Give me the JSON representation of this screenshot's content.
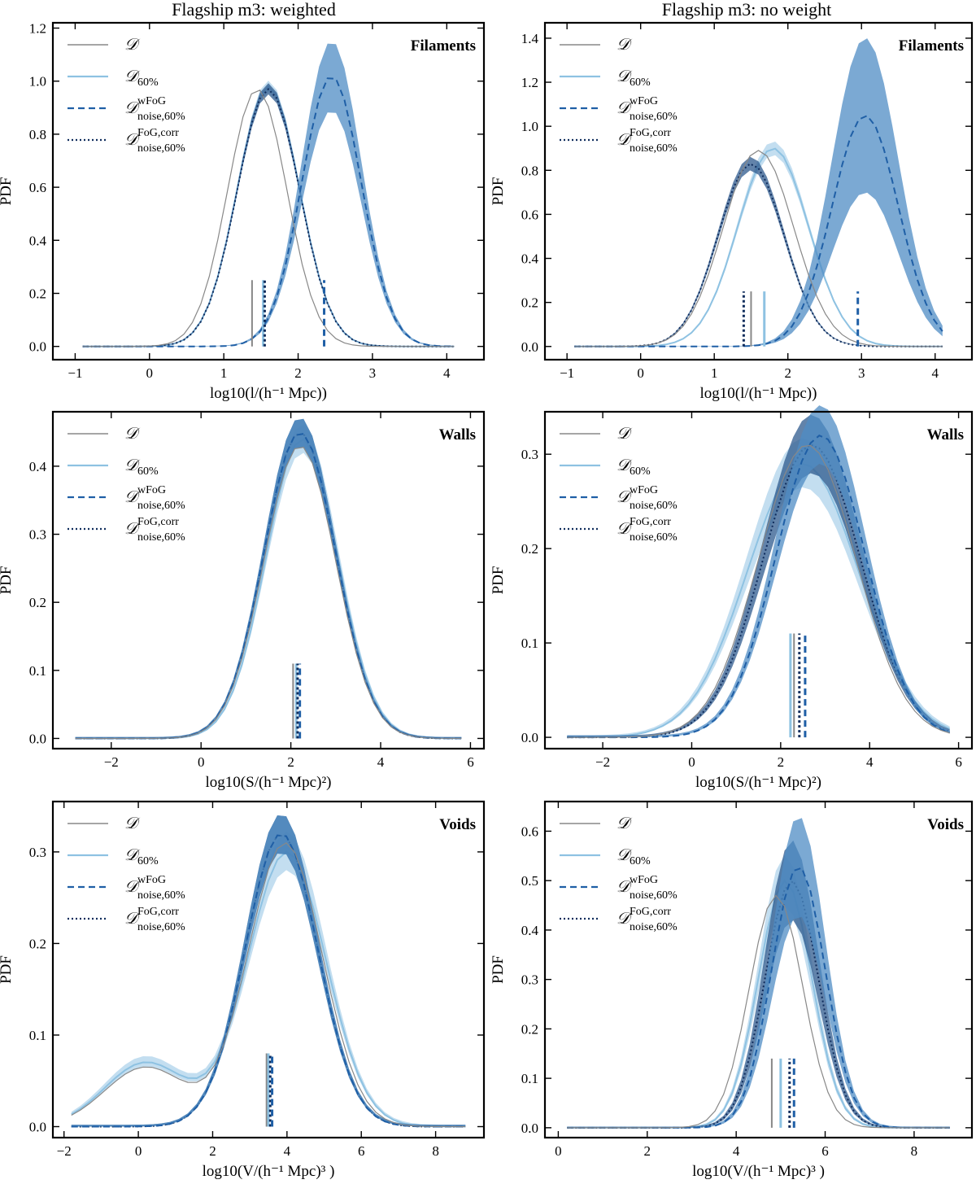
{
  "figure": {
    "col_titles": [
      "Flagship m3: weighted",
      "Flagship m3: no weight"
    ],
    "ylabel": "PDF"
  },
  "legend": [
    {
      "key": "D",
      "style": "thin-grey",
      "main": "𝒟",
      "sup": "",
      "sub": ""
    },
    {
      "key": "D60",
      "style": "light-blue",
      "main": "𝒟",
      "sup": "",
      "sub": "60%"
    },
    {
      "key": "Dw",
      "style": "dashed",
      "main": "𝒟",
      "sup": "wFoG",
      "sub": "noise,60%"
    },
    {
      "key": "Dc",
      "style": "dotted",
      "main": "𝒟",
      "sup": "FoG,corr",
      "sub": "noise,60%"
    }
  ],
  "colors": {
    "D": "#888888",
    "D60": "#8ec2e2",
    "Dw": "#1f5fa6",
    "Dc": "#0f2c5c",
    "band_D60": "#a9d0ea",
    "band_Dw": "#4f8cc4",
    "band_Dc": "#2e5a8e"
  },
  "chart_data": [
    {
      "type": "line",
      "row": 0,
      "col": 0,
      "label": "Filaments",
      "xlabel": "log10(l/(h⁻¹ Mpc))",
      "ylabel": "PDF",
      "xlim": [
        -1.3,
        4.5
      ],
      "ylim": [
        -0.05,
        1.22
      ],
      "xticks": [
        -1,
        0,
        1,
        2,
        3,
        4
      ],
      "yticks": [
        0.0,
        0.2,
        0.4,
        0.6,
        0.8,
        1.0,
        1.2
      ],
      "series": [
        {
          "name": "D",
          "peak": 0.97,
          "peak_x": 1.45,
          "width": 0.4,
          "lo_x": -0.9,
          "hi_x": 4.1
        },
        {
          "name": "D60",
          "peak": 0.98,
          "peak_x": 1.6,
          "width": 0.42,
          "lo_x": -0.9,
          "hi_x": 4.1,
          "band": 0.02
        },
        {
          "name": "Dc",
          "peak": 0.97,
          "peak_x": 1.6,
          "width": 0.42,
          "lo_x": -0.9,
          "hi_x": 4.1,
          "band": 0.02
        },
        {
          "name": "Dw",
          "peak": 1.02,
          "peak_x": 2.45,
          "width": 0.4,
          "lo_x": -0.9,
          "hi_x": 4.1,
          "band": 0.13
        }
      ],
      "medians": [
        {
          "name": "D",
          "x": 1.38,
          "h": 0.25
        },
        {
          "name": "D60",
          "x": 1.53,
          "h": 0.25
        },
        {
          "name": "Dc",
          "x": 1.55,
          "h": 0.25
        },
        {
          "name": "Dw",
          "x": 2.35,
          "h": 0.25
        }
      ]
    },
    {
      "type": "line",
      "row": 0,
      "col": 1,
      "label": "Filaments",
      "xlabel": "log10(l/(h⁻¹ Mpc))",
      "ylabel": "PDF",
      "xlim": [
        -1.3,
        4.5
      ],
      "ylim": [
        -0.06,
        1.47
      ],
      "xticks": [
        -1,
        0,
        1,
        2,
        3,
        4
      ],
      "yticks": [
        0.0,
        0.2,
        0.4,
        0.6,
        0.8,
        1.0,
        1.2,
        1.4
      ],
      "series": [
        {
          "name": "D",
          "peak": 0.89,
          "peak_x": 1.6,
          "width": 0.48,
          "lo_x": -0.9,
          "hi_x": 4.1
        },
        {
          "name": "D60",
          "peak": 0.9,
          "peak_x": 1.8,
          "width": 0.48,
          "lo_x": -0.9,
          "hi_x": 4.1,
          "band": 0.03
        },
        {
          "name": "Dc",
          "peak": 0.83,
          "peak_x": 1.5,
          "width": 0.45,
          "lo_x": -0.9,
          "hi_x": 4.1,
          "band": 0.03
        },
        {
          "name": "Dw",
          "peak": 1.05,
          "peak_x": 3.05,
          "width": 0.45,
          "lo_x": -0.9,
          "hi_x": 4.1,
          "band": 0.35
        }
      ],
      "medians": [
        {
          "name": "Dc",
          "x": 1.4,
          "h": 0.25
        },
        {
          "name": "D",
          "x": 1.5,
          "h": 0.25
        },
        {
          "name": "D60",
          "x": 1.68,
          "h": 0.25
        },
        {
          "name": "Dw",
          "x": 2.95,
          "h": 0.25
        }
      ]
    },
    {
      "type": "line",
      "row": 1,
      "col": 0,
      "label": "Walls",
      "xlabel": "log10(S/(h⁻¹ Mpc)²)",
      "ylabel": "PDF",
      "xlim": [
        -3.3,
        6.3
      ],
      "ylim": [
        -0.015,
        0.48
      ],
      "xticks": [
        -2,
        0,
        2,
        4,
        6
      ],
      "yticks": [
        0.0,
        0.1,
        0.2,
        0.3,
        0.4
      ],
      "series": [
        {
          "name": "D",
          "peak": 0.43,
          "peak_x": 2.2,
          "width": 0.8,
          "lo_x": -2.8,
          "hi_x": 5.8
        },
        {
          "name": "D60",
          "peak": 0.44,
          "peak_x": 2.25,
          "width": 0.8,
          "lo_x": -2.8,
          "hi_x": 5.8,
          "band": 0.02
        },
        {
          "name": "Dc",
          "peak": 0.45,
          "peak_x": 2.2,
          "width": 0.8,
          "lo_x": -2.8,
          "hi_x": 5.8,
          "band": 0.02
        },
        {
          "name": "Dw",
          "peak": 0.45,
          "peak_x": 2.2,
          "width": 0.8,
          "lo_x": -2.8,
          "hi_x": 5.8,
          "band": 0.02
        }
      ],
      "medians": [
        {
          "name": "D",
          "x": 2.05,
          "h": 0.11
        },
        {
          "name": "D60",
          "x": 2.12,
          "h": 0.11
        },
        {
          "name": "Dc",
          "x": 2.15,
          "h": 0.11
        },
        {
          "name": "Dw",
          "x": 2.2,
          "h": 0.11
        }
      ]
    },
    {
      "type": "line",
      "row": 1,
      "col": 1,
      "label": "Walls",
      "xlabel": "log10(S/(h⁻¹ Mpc)²)",
      "ylabel": "PDF",
      "xlim": [
        -3.3,
        6.3
      ],
      "ylim": [
        -0.012,
        0.345
      ],
      "xticks": [
        -2,
        0,
        2,
        4,
        6
      ],
      "yticks": [
        0.0,
        0.1,
        0.2,
        0.3
      ],
      "series": [
        {
          "name": "D",
          "peak": 0.31,
          "peak_x": 2.6,
          "width": 1.1,
          "lo_x": -2.8,
          "hi_x": 5.8
        },
        {
          "name": "D60",
          "peak": 0.29,
          "peak_x": 2.5,
          "width": 1.25,
          "lo_x": -2.8,
          "hi_x": 5.8,
          "band": 0.025
        },
        {
          "name": "Dc",
          "peak": 0.31,
          "peak_x": 2.7,
          "width": 1.1,
          "lo_x": -2.8,
          "hi_x": 5.8,
          "band": 0.03
        },
        {
          "name": "Dw",
          "peak": 0.32,
          "peak_x": 2.9,
          "width": 1.0,
          "lo_x": -2.8,
          "hi_x": 5.8,
          "band": 0.03
        }
      ],
      "medians": [
        {
          "name": "D60",
          "x": 2.22,
          "h": 0.11
        },
        {
          "name": "D",
          "x": 2.3,
          "h": 0.11
        },
        {
          "name": "Dc",
          "x": 2.42,
          "h": 0.11
        },
        {
          "name": "Dw",
          "x": 2.55,
          "h": 0.11
        }
      ]
    },
    {
      "type": "line",
      "row": 2,
      "col": 0,
      "label": "Voids",
      "xlabel": "log10(V/(h⁻¹ Mpc)³ )",
      "ylabel": "PDF",
      "xlim": [
        -2.3,
        9.3
      ],
      "ylim": [
        -0.012,
        0.355
      ],
      "xticks": [
        -2,
        0,
        2,
        4,
        6,
        8
      ],
      "yticks": [
        0.0,
        0.1,
        0.2,
        0.3
      ],
      "series": [
        {
          "name": "D",
          "peak": 0.31,
          "peak_x": 3.95,
          "width": 1.0,
          "lo_x": -1.8,
          "hi_x": 8.8,
          "shoulder": 0.065
        },
        {
          "name": "D60",
          "peak": 0.3,
          "peak_x": 4.0,
          "width": 1.05,
          "lo_x": -1.8,
          "hi_x": 8.8,
          "shoulder": 0.07,
          "band": 0.02
        },
        {
          "name": "Dc",
          "peak": 0.32,
          "peak_x": 3.85,
          "width": 0.98,
          "lo_x": -1.8,
          "hi_x": 8.8,
          "band": 0.02
        },
        {
          "name": "Dw",
          "peak": 0.32,
          "peak_x": 3.85,
          "width": 0.98,
          "lo_x": -1.8,
          "hi_x": 8.8,
          "band": 0.02
        }
      ],
      "medians": [
        {
          "name": "D",
          "x": 3.45,
          "h": 0.08
        },
        {
          "name": "D60",
          "x": 3.5,
          "h": 0.08
        },
        {
          "name": "Dc",
          "x": 3.55,
          "h": 0.08
        },
        {
          "name": "Dw",
          "x": 3.6,
          "h": 0.08
        }
      ]
    },
    {
      "type": "line",
      "row": 2,
      "col": 1,
      "label": "Voids",
      "xlabel": "log10(V/(h⁻¹ Mpc)³ )",
      "ylabel": "PDF",
      "xlim": [
        -0.3,
        9.3
      ],
      "ylim": [
        -0.02,
        0.66
      ],
      "xticks": [
        0,
        2,
        4,
        6,
        8
      ],
      "yticks": [
        0.0,
        0.1,
        0.2,
        0.3,
        0.4,
        0.5,
        0.6
      ],
      "series": [
        {
          "name": "D",
          "peak": 0.47,
          "peak_x": 4.9,
          "width": 0.6,
          "lo_x": 0.2,
          "hi_x": 8.8
        },
        {
          "name": "D60",
          "peak": 0.5,
          "peak_x": 5.1,
          "width": 0.6,
          "lo_x": 0.2,
          "hi_x": 8.8,
          "band": 0.05
        },
        {
          "name": "Dc",
          "peak": 0.5,
          "peak_x": 5.25,
          "width": 0.6,
          "lo_x": 0.2,
          "hi_x": 8.8,
          "band": 0.08
        },
        {
          "name": "Dw",
          "peak": 0.53,
          "peak_x": 5.4,
          "width": 0.6,
          "lo_x": 0.2,
          "hi_x": 8.8,
          "band": 0.1
        }
      ],
      "medians": [
        {
          "name": "D",
          "x": 4.8,
          "h": 0.14
        },
        {
          "name": "D60",
          "x": 5.0,
          "h": 0.14
        },
        {
          "name": "Dc",
          "x": 5.2,
          "h": 0.14
        },
        {
          "name": "Dw",
          "x": 5.3,
          "h": 0.14
        }
      ]
    }
  ]
}
